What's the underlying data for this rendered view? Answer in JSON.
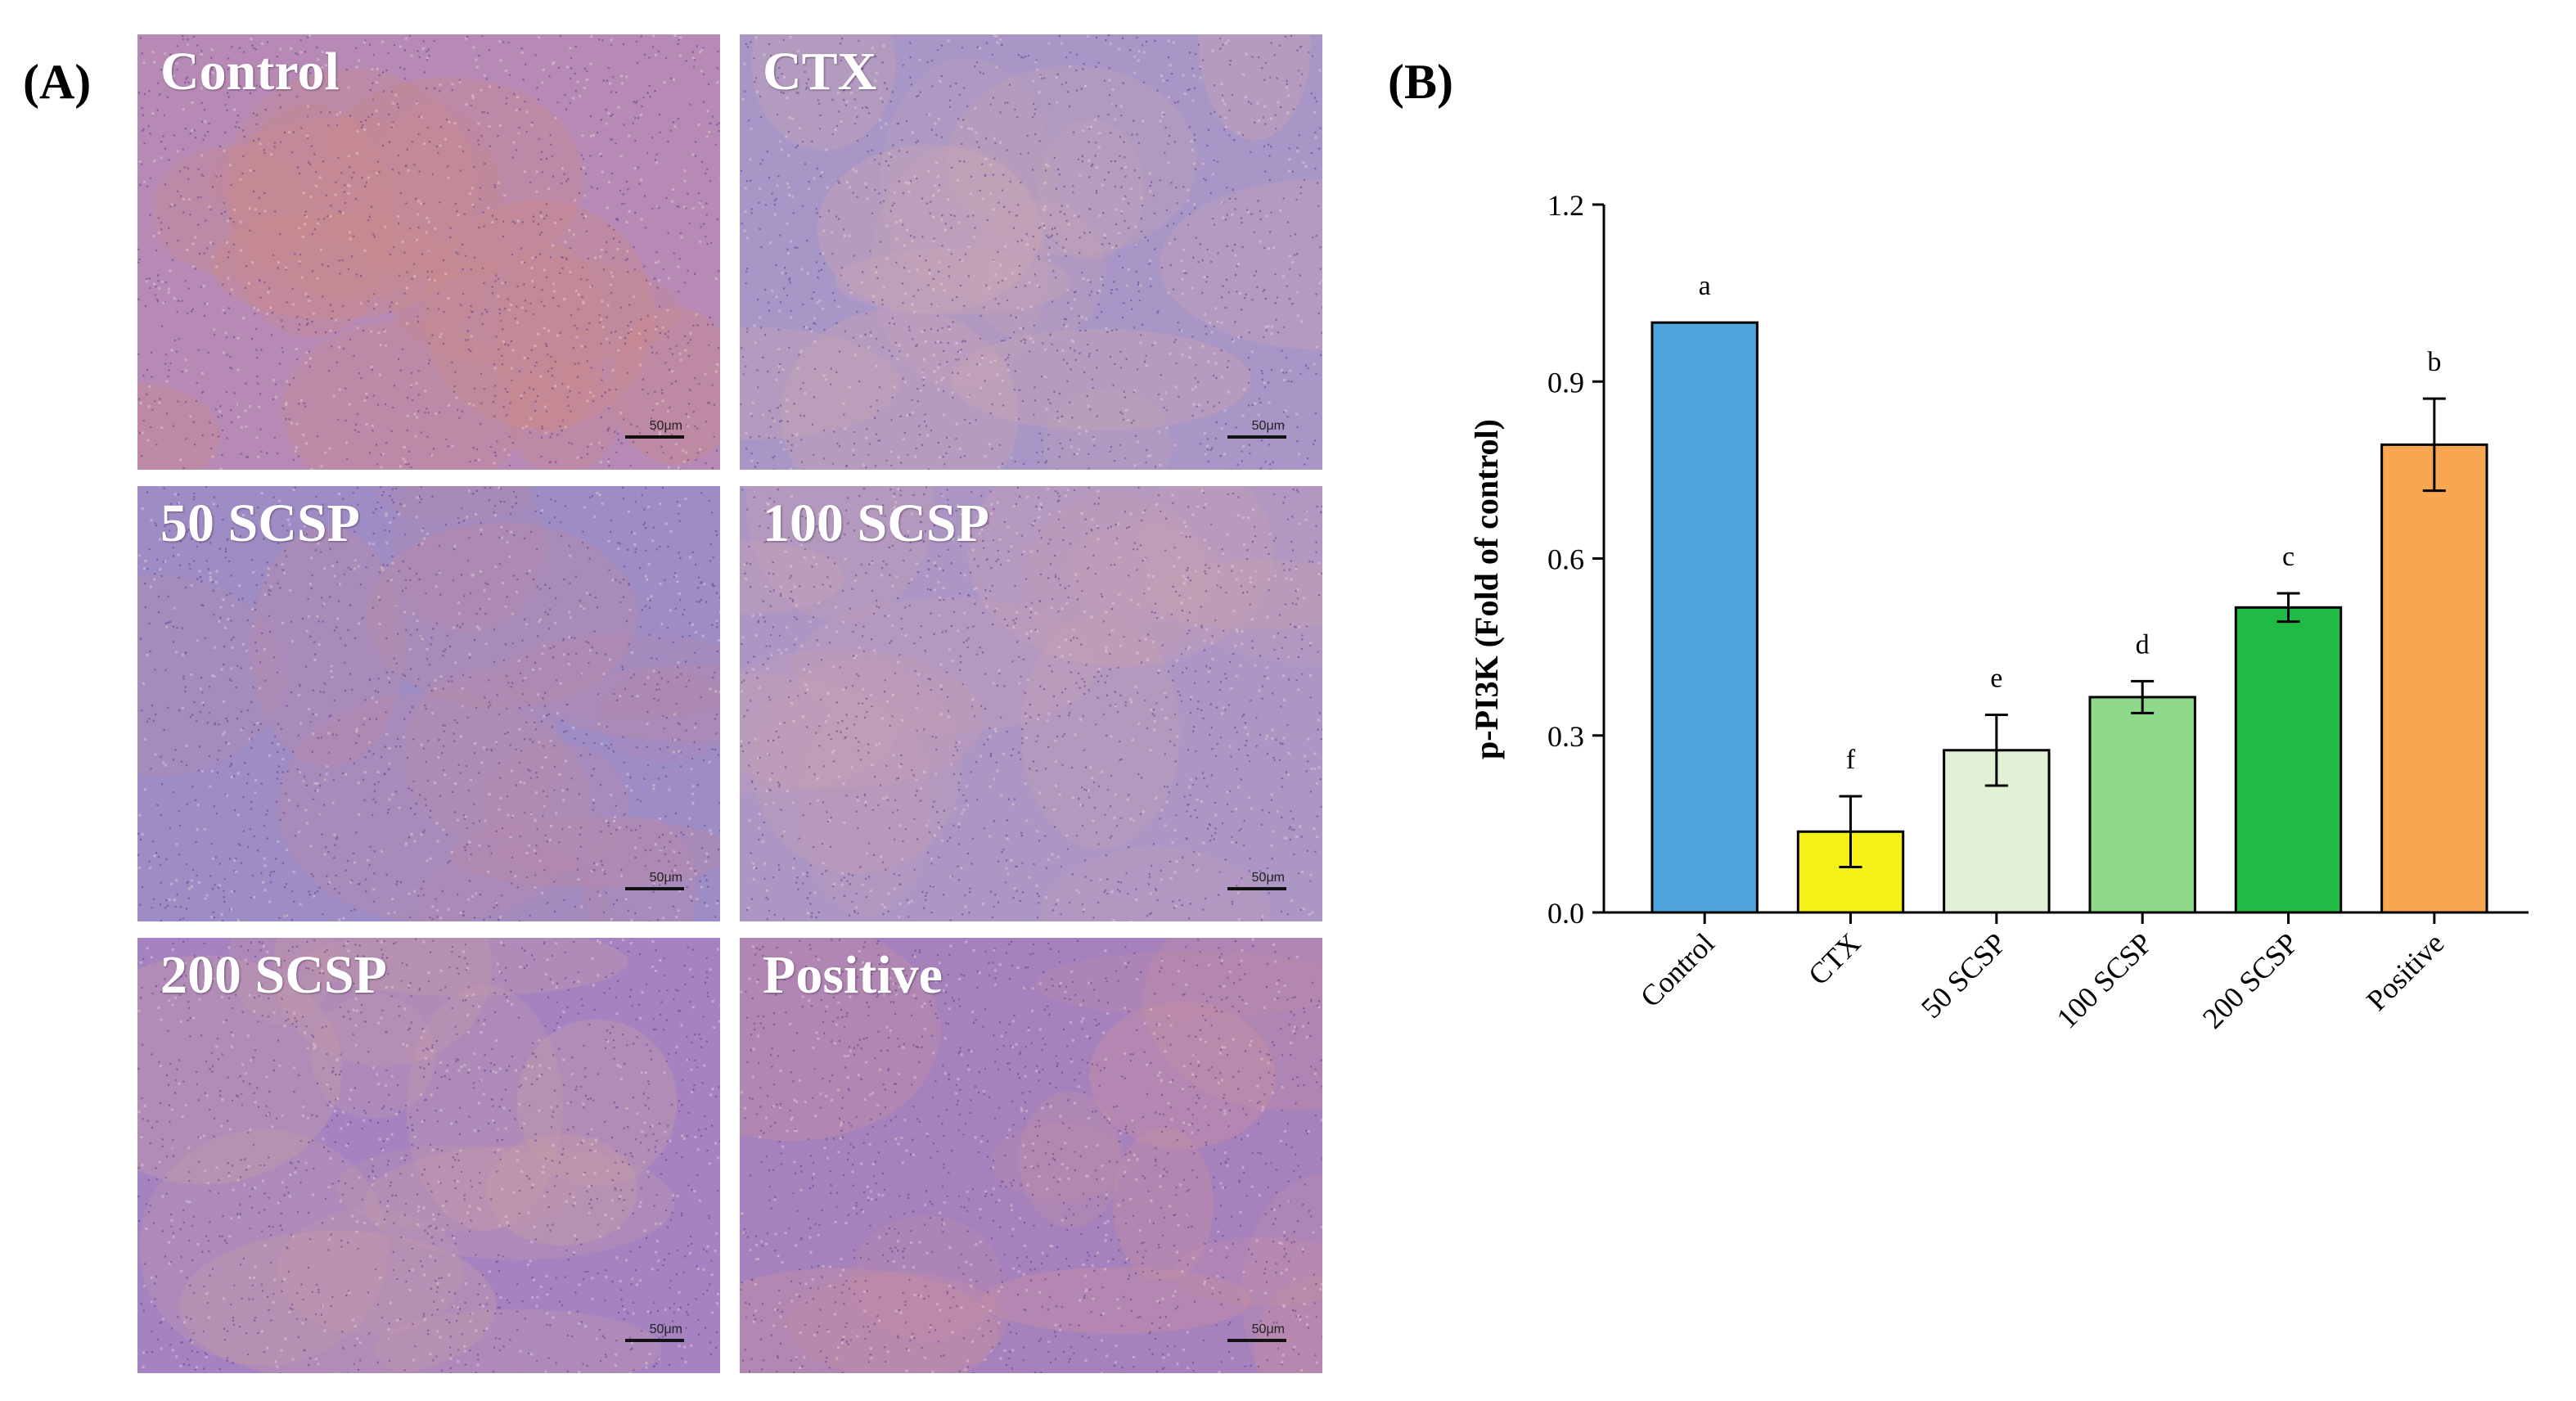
{
  "panel_a": {
    "letter": "(A)",
    "scale_label": "50μm",
    "images": [
      {
        "label": "Control",
        "base": "#b68ab4",
        "warm": "#c98a8a"
      },
      {
        "label": "CTX",
        "base": "#a896c6",
        "warm": "#c7a4b4"
      },
      {
        "label": "50 SCSP",
        "base": "#9e8cc4",
        "warm": "#b88aa8"
      },
      {
        "label": "100 SCSP",
        "base": "#ab96c4",
        "warm": "#c6a0b4"
      },
      {
        "label": "200 SCSP",
        "base": "#a483c0",
        "warm": "#c49aa8"
      },
      {
        "label": "Positive",
        "base": "#a582bc",
        "warm": "#c690a2"
      }
    ]
  },
  "panel_b": {
    "letter": "(B)"
  },
  "chart_data": {
    "type": "bar",
    "title": "",
    "xlabel": "",
    "ylabel": "p-PI3K (Fold of control)",
    "ylim": [
      0,
      1.2
    ],
    "yticks": [
      "0.0",
      "0.3",
      "0.6",
      "0.9",
      "1.2"
    ],
    "ytick_values": [
      0,
      0.3,
      0.6,
      0.9,
      1.2
    ],
    "categories": [
      "Control",
      "CTX",
      "50 SCSP",
      "100 SCSP",
      "200 SCSP",
      "Positive"
    ],
    "values": [
      1.0,
      0.137,
      0.275,
      0.365,
      0.517,
      0.793
    ],
    "errors": [
      0,
      0.06,
      0.06,
      0.027,
      0.024,
      0.078
    ],
    "significance_letters": [
      "a",
      "f",
      "e",
      "d",
      "c",
      "b"
    ],
    "colors": [
      "#4fa3dc",
      "#f5f017",
      "#e2f1d6",
      "#8fd98b",
      "#1fbb44",
      "#f8a650"
    ]
  }
}
